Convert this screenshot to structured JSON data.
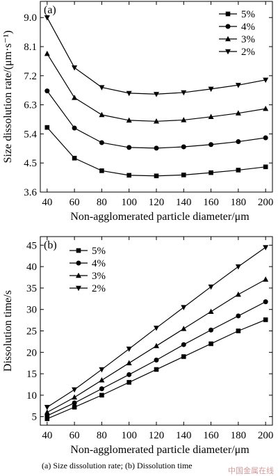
{
  "chart_data": [
    {
      "type": "line",
      "panel_label": "(a)",
      "xlabel": "Non-agglomerated particle diameter/μm",
      "ylabel": "Size dissolution rate/(μm·s⁻¹)",
      "x": [
        40,
        60,
        80,
        100,
        120,
        140,
        160,
        180,
        200
      ],
      "xlim": [
        35,
        205
      ],
      "ylim": [
        3.6,
        9.5
      ],
      "x_ticks": [
        "40",
        "60",
        "80",
        "100",
        "120",
        "140",
        "160",
        "180",
        "200"
      ],
      "y_ticks": [
        "3.6",
        "4.5",
        "5.4",
        "6.3",
        "7.2",
        "8.1",
        "9.0"
      ],
      "legend_position": "top-right",
      "series": [
        {
          "name": "5%",
          "marker": "square",
          "values": [
            5.6,
            4.65,
            4.26,
            4.12,
            4.1,
            4.13,
            4.2,
            4.28,
            4.38
          ]
        },
        {
          "name": "4%",
          "marker": "circle",
          "values": [
            6.73,
            5.58,
            5.13,
            4.98,
            4.96,
            5.0,
            5.07,
            5.16,
            5.28
          ]
        },
        {
          "name": "3%",
          "marker": "triangle-up",
          "values": [
            7.88,
            6.52,
            5.99,
            5.82,
            5.79,
            5.83,
            5.93,
            6.04,
            6.18
          ]
        },
        {
          "name": "2%",
          "marker": "triangle-down",
          "values": [
            9.0,
            7.45,
            6.84,
            6.66,
            6.63,
            6.68,
            6.79,
            6.91,
            7.07
          ]
        }
      ]
    },
    {
      "type": "line",
      "panel_label": "(b)",
      "xlabel": "Non-agglomerated particle diameter/μm",
      "ylabel": "Dissolution time/s",
      "x": [
        40,
        60,
        80,
        100,
        120,
        140,
        160,
        180,
        200
      ],
      "xlim": [
        35,
        205
      ],
      "ylim": [
        3,
        47
      ],
      "x_ticks": [
        "40",
        "60",
        "80",
        "100",
        "120",
        "140",
        "160",
        "180",
        "200"
      ],
      "y_ticks": [
        "5",
        "10",
        "15",
        "20",
        "25",
        "30",
        "35",
        "40",
        "45"
      ],
      "legend_position": "top-left",
      "series": [
        {
          "name": "5%",
          "marker": "square",
          "values": [
            4.5,
            7.2,
            10.0,
            13.0,
            16.0,
            19.0,
            22.0,
            25.0,
            27.6
          ]
        },
        {
          "name": "4%",
          "marker": "circle",
          "values": [
            5.2,
            8.2,
            11.5,
            14.8,
            18.2,
            21.8,
            25.2,
            28.5,
            31.8
          ]
        },
        {
          "name": "3%",
          "marker": "triangle-up",
          "values": [
            6.0,
            9.5,
            13.5,
            17.5,
            21.5,
            25.5,
            29.5,
            33.5,
            37.0
          ]
        },
        {
          "name": "2%",
          "marker": "triangle-down",
          "values": [
            7.2,
            11.3,
            16.0,
            20.8,
            25.7,
            30.5,
            35.3,
            40.0,
            44.5
          ]
        }
      ]
    }
  ],
  "caption": "(a)  Size dissolution rate; (b)  Dissolution time",
  "watermark": "中国金属在线"
}
